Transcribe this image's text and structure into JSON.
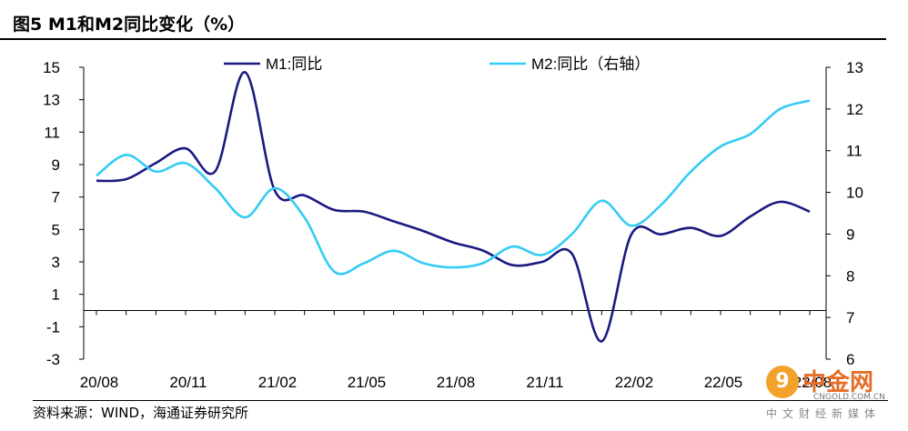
{
  "title": "图5  M1和M2同比变化（%）",
  "source": "资料来源：WIND，海通证券研究所",
  "watermark": {
    "logo": "中金网",
    "url": "CNGOLD.COM.CN",
    "sub": "中文财经新媒体"
  },
  "colors": {
    "m1": "#1a1a80",
    "m2": "#33ccf5",
    "axis": "#000000"
  },
  "chart_data": {
    "type": "line",
    "title": "",
    "x_ticks": [
      "20/08",
      "20/11",
      "21/02",
      "21/05",
      "21/08",
      "21/11",
      "22/02",
      "22/05",
      "22/08"
    ],
    "x": [
      "20/08",
      "20/09",
      "20/10",
      "20/11",
      "20/12",
      "21/01",
      "21/02",
      "21/03",
      "21/04",
      "21/05",
      "21/06",
      "21/07",
      "21/08",
      "21/09",
      "21/10",
      "21/11",
      "21/12",
      "22/01",
      "22/02",
      "22/03",
      "22/04",
      "22/05",
      "22/06",
      "22/07",
      "22/08"
    ],
    "y_left": {
      "ticks": [
        15,
        13,
        11,
        9,
        7,
        5,
        3,
        1,
        -1,
        -3
      ],
      "ylim": [
        -3,
        15
      ]
    },
    "y_right": {
      "ticks": [
        13,
        12,
        11,
        10,
        9,
        8,
        7,
        6
      ],
      "ylim": [
        6,
        13
      ]
    },
    "legend": {
      "placement": "top"
    },
    "series": [
      {
        "name": "M1:同比",
        "axis": "left",
        "values": [
          8.0,
          8.1,
          9.1,
          10.0,
          8.6,
          14.7,
          7.4,
          7.1,
          6.2,
          6.1,
          5.5,
          4.9,
          4.2,
          3.7,
          2.8,
          3.0,
          3.5,
          -1.9,
          4.7,
          4.7,
          5.1,
          4.6,
          5.8,
          6.7,
          6.1
        ]
      },
      {
        "name": "M2:同比（右轴）",
        "axis": "right",
        "values": [
          10.4,
          10.9,
          10.5,
          10.7,
          10.1,
          9.4,
          10.1,
          9.4,
          8.1,
          8.3,
          8.6,
          8.3,
          8.2,
          8.3,
          8.7,
          8.5,
          9.0,
          9.8,
          9.2,
          9.7,
          10.5,
          11.1,
          11.4,
          12.0,
          12.2
        ]
      }
    ]
  }
}
